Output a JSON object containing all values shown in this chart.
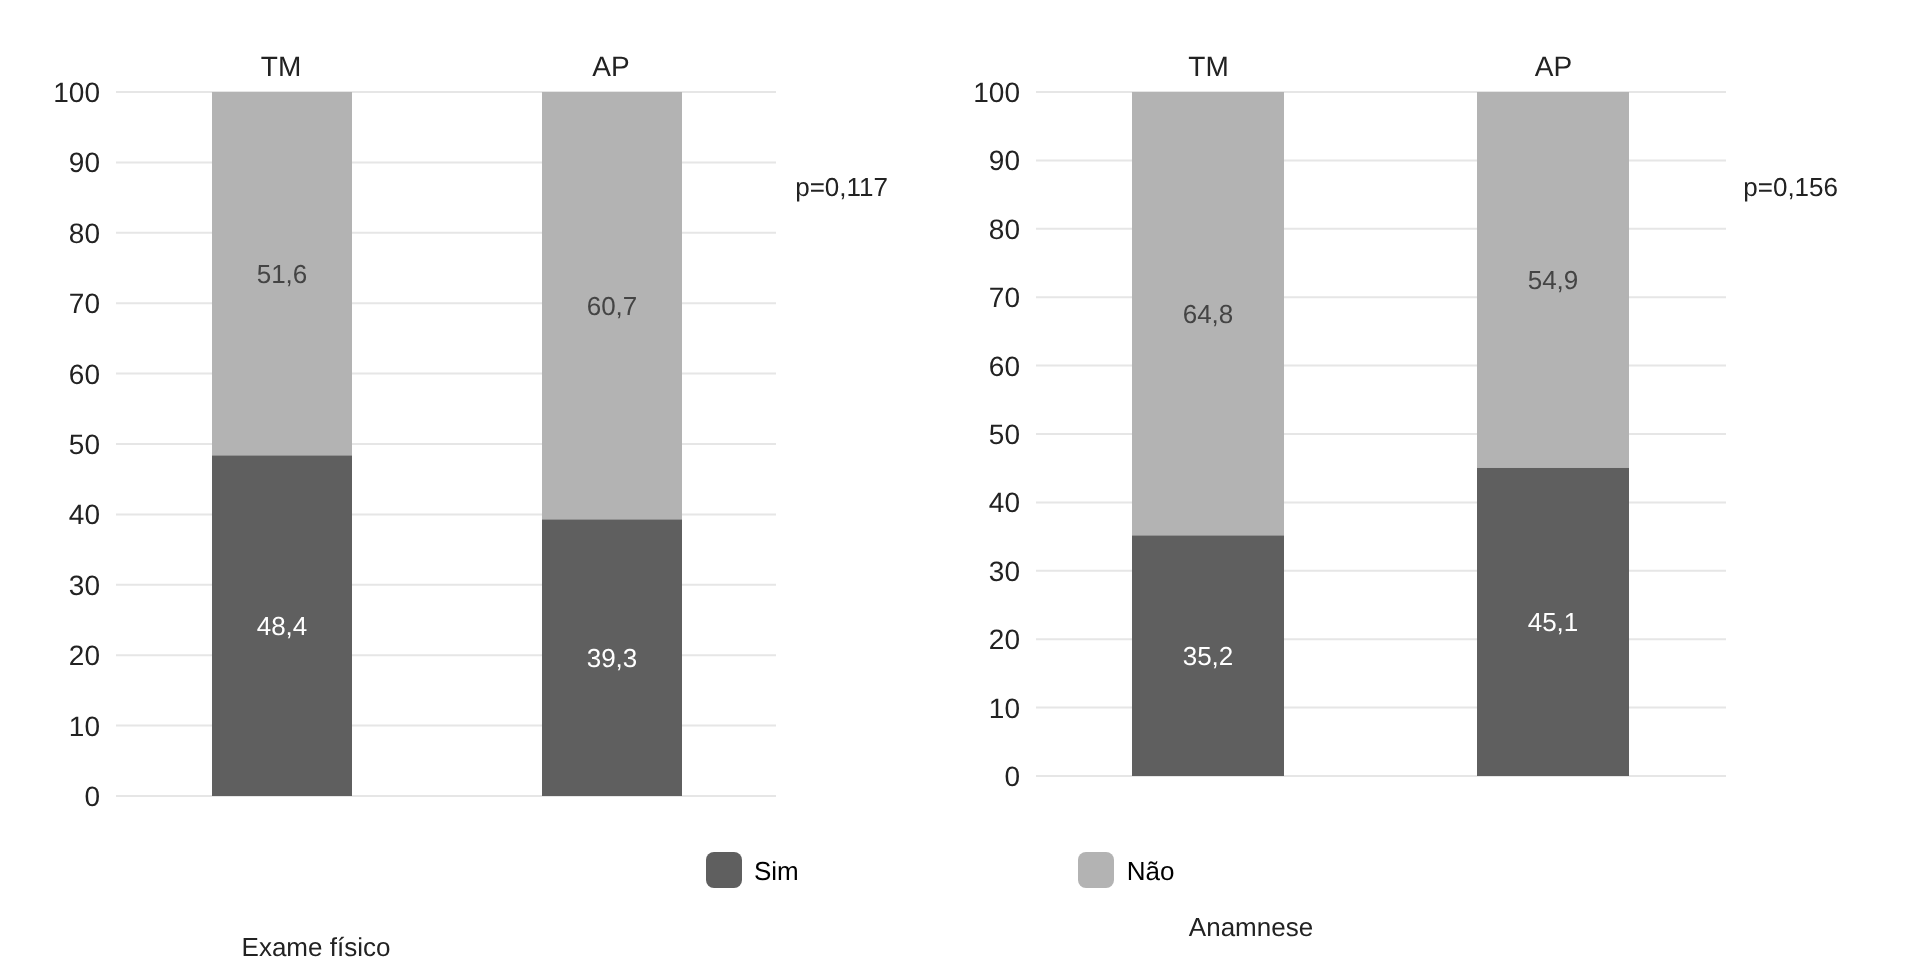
{
  "chart_data": [
    {
      "type": "bar",
      "title": "Exame físico",
      "categories": [
        "TM",
        "AP"
      ],
      "stacked": true,
      "series": [
        {
          "name": "Sim",
          "color": "#5f5f5f",
          "values": [
            48.4,
            39.3
          ],
          "value_labels": [
            "48,4",
            "39,3"
          ]
        },
        {
          "name": "Não",
          "color": "#b3b3b3",
          "values": [
            51.6,
            60.7
          ],
          "value_labels": [
            "51,6",
            "60,7"
          ]
        }
      ],
      "ylim": [
        0,
        100
      ],
      "yticks": [
        0,
        10,
        20,
        30,
        40,
        50,
        60,
        70,
        80,
        90,
        100
      ],
      "grid": "y",
      "legend": "bottom",
      "annotations": [
        "p=0,117"
      ]
    },
    {
      "type": "bar",
      "title": "Anamnese",
      "categories": [
        "TM",
        "AP"
      ],
      "stacked": true,
      "series": [
        {
          "color": "#5f5f5f",
          "values": [
            35.2,
            45.1
          ],
          "value_labels": [
            "35,2",
            "45,1"
          ]
        },
        {
          "color": "#b3b3b3",
          "values": [
            64.8,
            54.9
          ],
          "value_labels": [
            "64,8",
            "54,9"
          ]
        }
      ],
      "ylim": [
        0,
        100
      ],
      "yticks": [
        0,
        10,
        20,
        30,
        40,
        50,
        60,
        70,
        80,
        90,
        100
      ],
      "grid": "y",
      "annotations": [
        "p=0,156"
      ]
    }
  ]
}
